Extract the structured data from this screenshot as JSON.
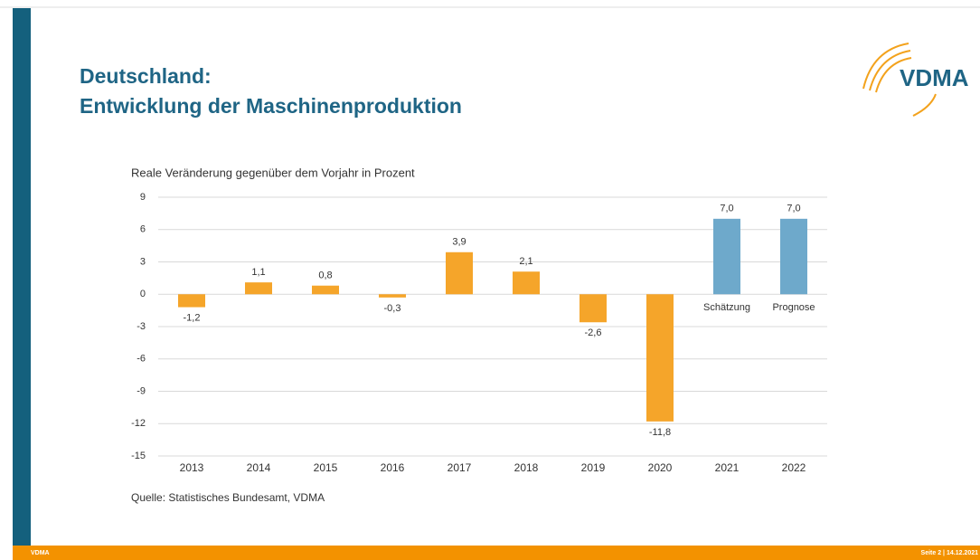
{
  "header": {
    "title_line1": "Deutschland:",
    "title_line2": "Entwicklung der Maschinenproduktion",
    "logo": "VDMA"
  },
  "chart_data": {
    "type": "bar",
    "y_axis_label": "Reale Veränderung gegenüber dem Vorjahr in Prozent",
    "categories": [
      "2013",
      "2014",
      "2015",
      "2016",
      "2017",
      "2018",
      "2019",
      "2020",
      "2021",
      "2022"
    ],
    "values": [
      -1.2,
      1.1,
      0.8,
      -0.3,
      3.9,
      2.1,
      -2.6,
      -11.8,
      7.0,
      7.0
    ],
    "value_labels": [
      "-1,2",
      "1,1",
      "0,8",
      "-0,3",
      "3,9",
      "2,1",
      "-2,6",
      "-11,8",
      "7,0",
      "7,0"
    ],
    "colors": [
      "#f5a52a",
      "#f5a52a",
      "#f5a52a",
      "#f5a52a",
      "#f5a52a",
      "#f5a52a",
      "#f5a52a",
      "#f5a52a",
      "#6ea9cb",
      "#6ea9cb"
    ],
    "annotations": [
      {
        "category": 8,
        "text": "Schätzung"
      },
      {
        "category": 9,
        "text": "Prognose"
      }
    ],
    "ylim": [
      -15,
      9
    ],
    "yticks": [
      -15,
      -12,
      -9,
      -6,
      -3,
      0,
      3,
      6,
      9
    ],
    "grid": true
  },
  "source": "Quelle: Statistisches Bundesamt, VDMA",
  "footer": {
    "left": "VDMA",
    "right": "Seite 2 | 14.12.2021"
  }
}
